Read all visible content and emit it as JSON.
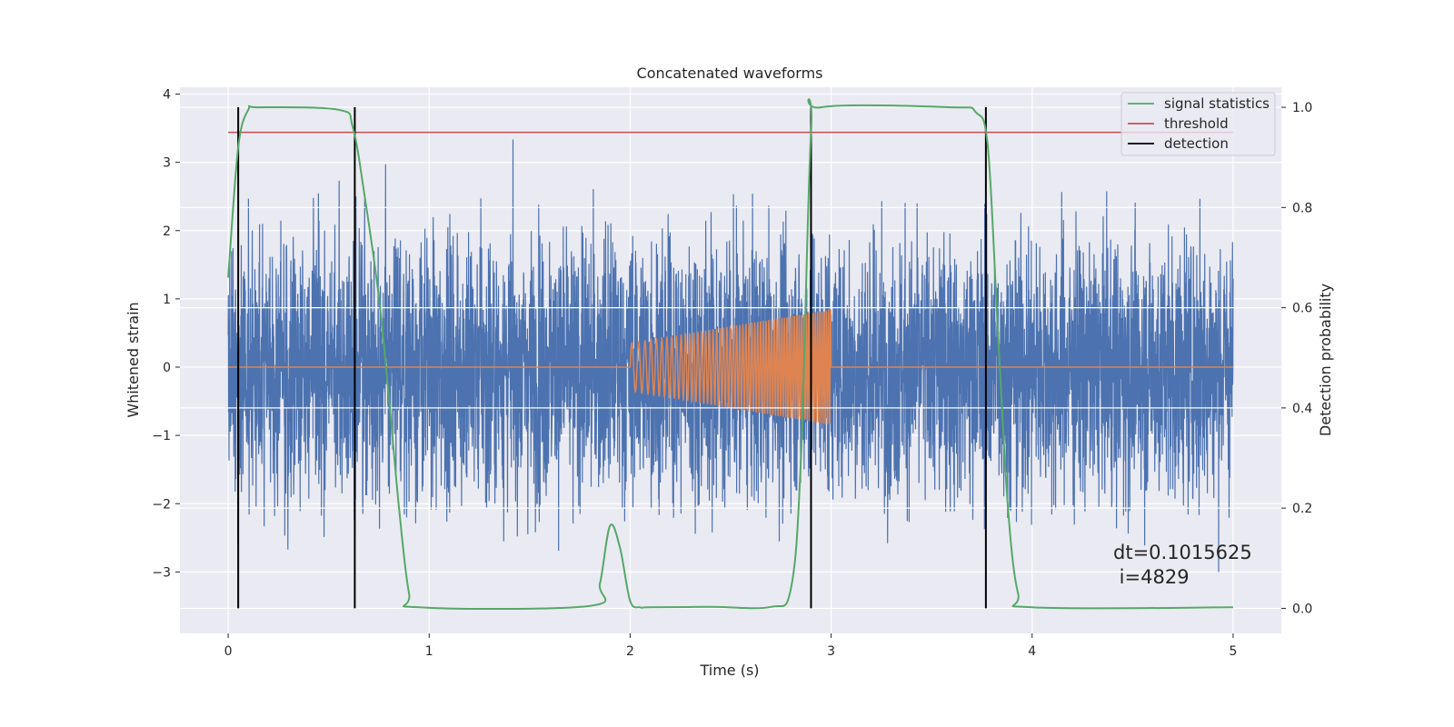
{
  "chart_data": {
    "type": "line",
    "title": "Concatenated waveforms",
    "xlabel": "Time (s)",
    "ylabel_left": "Whitened strain",
    "ylabel_right": "Detection probability",
    "xlim": [
      -0.24,
      5.24
    ],
    "ylim_left": [
      -3.9,
      4.1
    ],
    "ylim_right": [
      -0.05,
      1.04
    ],
    "x_ticks": [
      0,
      1,
      2,
      3,
      4,
      5
    ],
    "y_left_ticks": [
      -3,
      -2,
      -1,
      0,
      1,
      2,
      3,
      4
    ],
    "y_left_tick_labels": [
      "−3",
      "−2",
      "−1",
      "0",
      "1",
      "2",
      "3",
      "4"
    ],
    "y_right_ticks": [
      0.0,
      0.2,
      0.4,
      0.6,
      0.8,
      1.0
    ],
    "y_right_tick_labels": [
      "0.0",
      "0.2",
      "0.4",
      "0.6",
      "0.8",
      "1.0"
    ],
    "grid": true,
    "legend_position": "top-right",
    "background": "#eaeaf2",
    "series": [
      {
        "name": "",
        "axis": "left",
        "color": "#4c72b0",
        "kind": "noise",
        "x_range": [
          0,
          5
        ],
        "std": 0.95,
        "min_value": -3.6,
        "max_value": 3.75
      },
      {
        "name": "",
        "axis": "left",
        "color": "#dd8452",
        "kind": "chirp",
        "x_range": [
          0,
          5
        ],
        "chirp_start": 2.0,
        "chirp_end": 3.0,
        "amplitude_start": 0.35,
        "amplitude_end": 0.85,
        "freq_start_hz": 28,
        "freq_end_hz": 95
      },
      {
        "name": "signal statistics",
        "axis": "right",
        "color": "#55a868",
        "x": [
          0.0,
          0.05,
          0.1,
          0.15,
          0.55,
          0.62,
          0.68,
          0.75,
          0.8,
          0.85,
          0.9,
          0.95,
          1.8,
          1.85,
          1.9,
          1.95,
          2.0,
          2.05,
          2.1,
          2.4,
          2.7,
          2.8,
          2.85,
          2.9,
          2.95,
          3.6,
          3.72,
          3.78,
          3.83,
          3.88,
          3.93,
          4.0,
          5.0
        ],
        "y": [
          0.66,
          0.92,
          0.995,
          1.0,
          0.995,
          0.96,
          0.82,
          0.62,
          0.42,
          0.2,
          0.03,
          0.002,
          0.005,
          0.05,
          0.165,
          0.12,
          0.015,
          0.002,
          0.002,
          0.003,
          0.003,
          0.04,
          0.3,
          0.95,
          1.0,
          1.0,
          0.99,
          0.92,
          0.55,
          0.2,
          0.03,
          0.002,
          0.002
        ]
      },
      {
        "name": "threshold",
        "axis": "right",
        "color": "#c44e52",
        "x": [
          0,
          5
        ],
        "y": [
          0.95,
          0.95
        ]
      },
      {
        "name": "detection",
        "axis": "right",
        "color": "#000000",
        "kind": "vertical_lines",
        "x": [
          0.05,
          0.63,
          2.9,
          3.77
        ],
        "y_range": [
          0.0,
          1.0
        ]
      }
    ],
    "annotations": [
      {
        "text": "dt=0.1015625",
        "x": 4.5,
        "y_left": -2.75
      },
      {
        "text": " i=4829",
        "x": 4.5,
        "y_left": -3.1
      }
    ]
  }
}
